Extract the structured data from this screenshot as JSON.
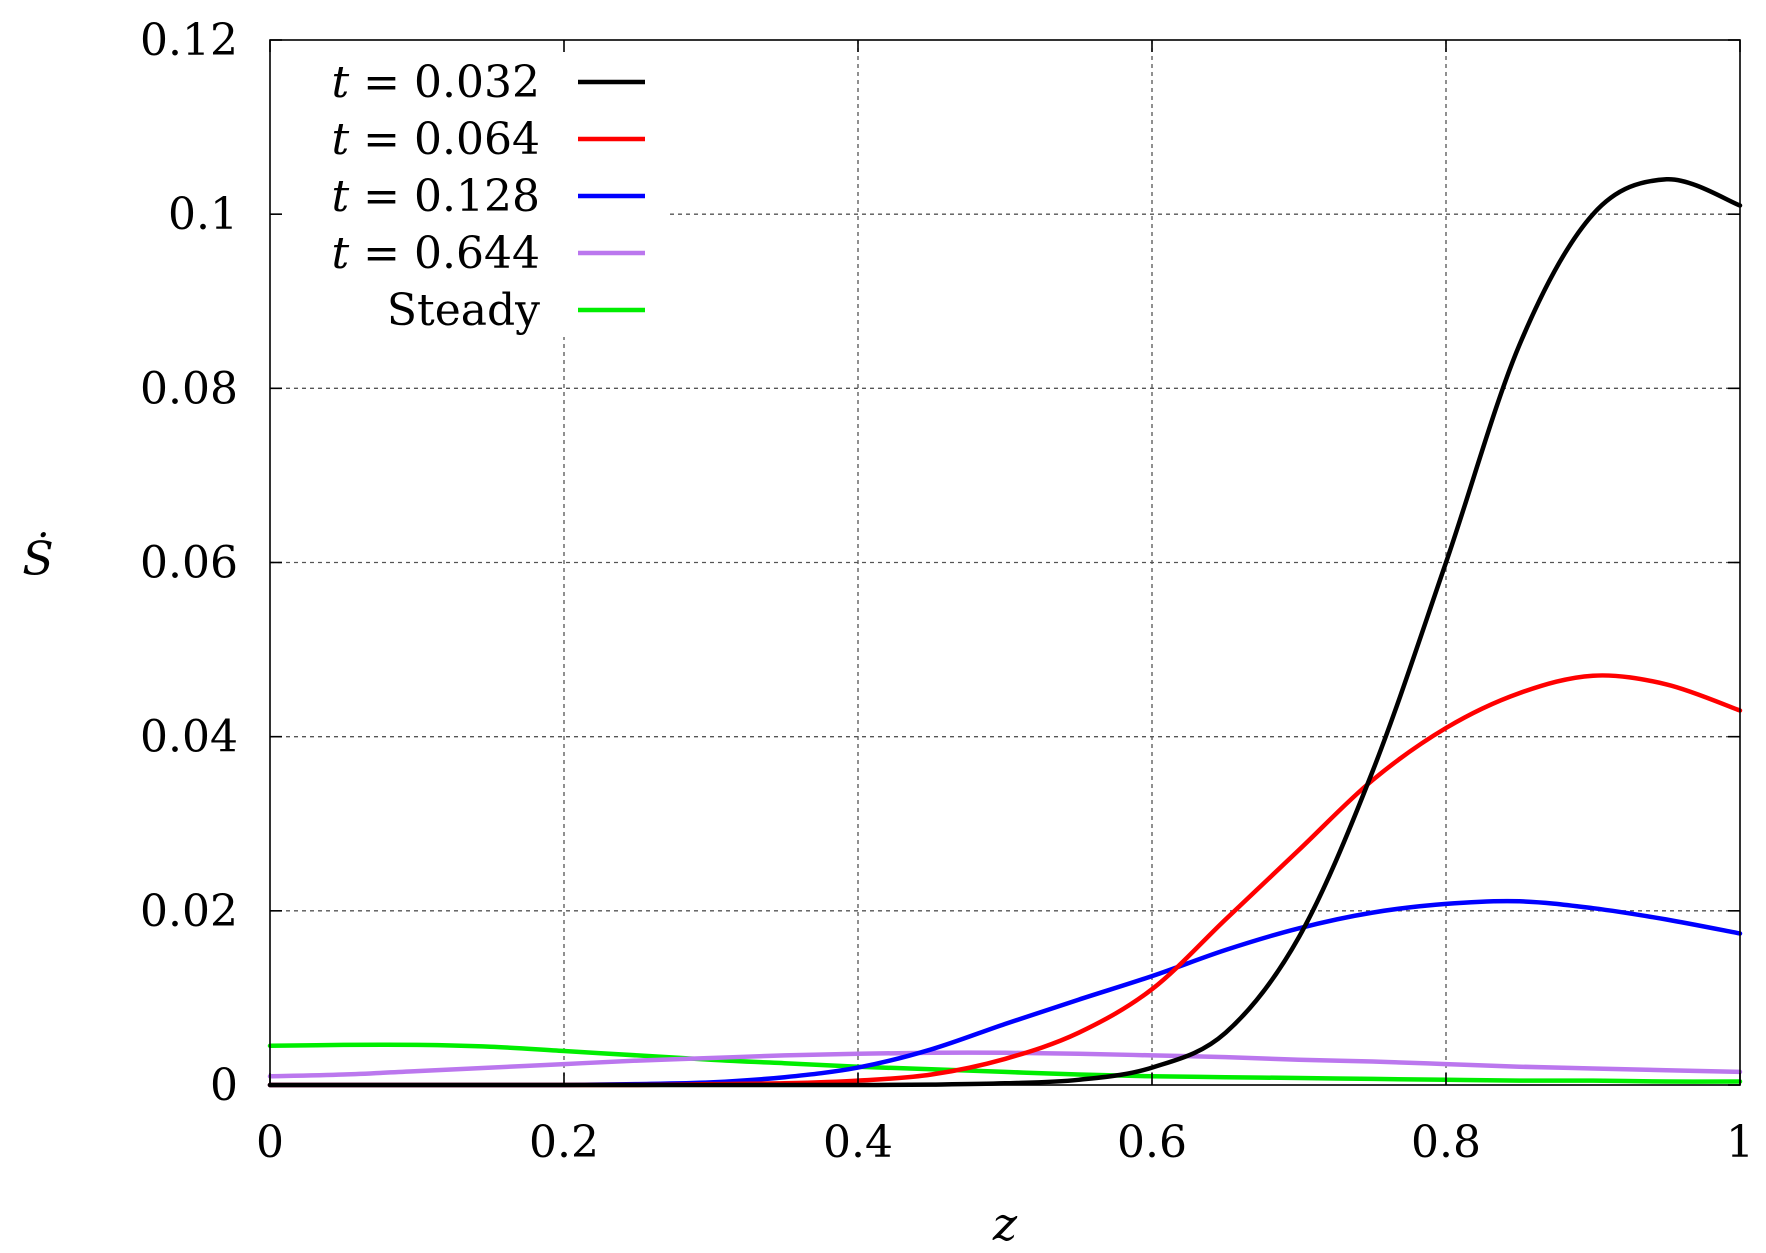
{
  "chart_data": {
    "type": "line",
    "xlabel": "z",
    "ylabel": "Ṡ",
    "xlim": [
      0,
      1
    ],
    "ylim": [
      0,
      0.12
    ],
    "xticks": [
      "0",
      "0.2",
      "0.4",
      "0.6",
      "0.8",
      "1"
    ],
    "yticks": [
      "0",
      "0.02",
      "0.04",
      "0.06",
      "0.08",
      "0.1",
      "0.12"
    ],
    "grid": true,
    "legend_position": "top-left",
    "x": [
      0,
      0.05,
      0.1,
      0.15,
      0.2,
      0.25,
      0.3,
      0.35,
      0.4,
      0.45,
      0.5,
      0.55,
      0.6,
      0.65,
      0.7,
      0.75,
      0.8,
      0.85,
      0.9,
      0.95,
      1.0
    ],
    "series": [
      {
        "name": "t = 0.032",
        "color": "#000000",
        "values": [
          0,
          0,
          0,
          0,
          0,
          0,
          0,
          0,
          0,
          5e-05,
          0.0002,
          0.0006,
          0.002,
          0.006,
          0.017,
          0.036,
          0.06,
          0.085,
          0.1,
          0.104,
          0.101
        ]
      },
      {
        "name": "t = 0.064",
        "color": "#ff0000",
        "values": [
          0,
          0,
          0,
          0,
          0,
          0,
          0.0001,
          0.0002,
          0.0005,
          0.0012,
          0.003,
          0.006,
          0.011,
          0.019,
          0.027,
          0.035,
          0.041,
          0.045,
          0.047,
          0.046,
          0.043
        ]
      },
      {
        "name": "t = 0.128",
        "color": "#0000ff",
        "values": [
          0,
          0,
          0,
          0,
          0,
          0.0001,
          0.0003,
          0.0009,
          0.002,
          0.0041,
          0.007,
          0.0098,
          0.0125,
          0.0155,
          0.018,
          0.0198,
          0.0208,
          0.0211,
          0.0203,
          0.019,
          0.0174
        ]
      },
      {
        "name": "t = 0.644",
        "color": "#bb77ee",
        "values": [
          0.001,
          0.0012,
          0.0016,
          0.002,
          0.0024,
          0.0028,
          0.0031,
          0.0034,
          0.0036,
          0.0037,
          0.0037,
          0.0036,
          0.0034,
          0.0032,
          0.0029,
          0.0027,
          0.0024,
          0.0021,
          0.0019,
          0.0017,
          0.0015
        ]
      },
      {
        "name": "Steady",
        "color": "#00ee00",
        "values": [
          0.0045,
          0.0046,
          0.0046,
          0.0044,
          0.0039,
          0.0034,
          0.0029,
          0.0025,
          0.0021,
          0.0018,
          0.0015,
          0.0012,
          0.001,
          0.0009,
          0.0008,
          0.0007,
          0.0006,
          0.0005,
          0.0005,
          0.0004,
          0.0004
        ]
      }
    ]
  }
}
